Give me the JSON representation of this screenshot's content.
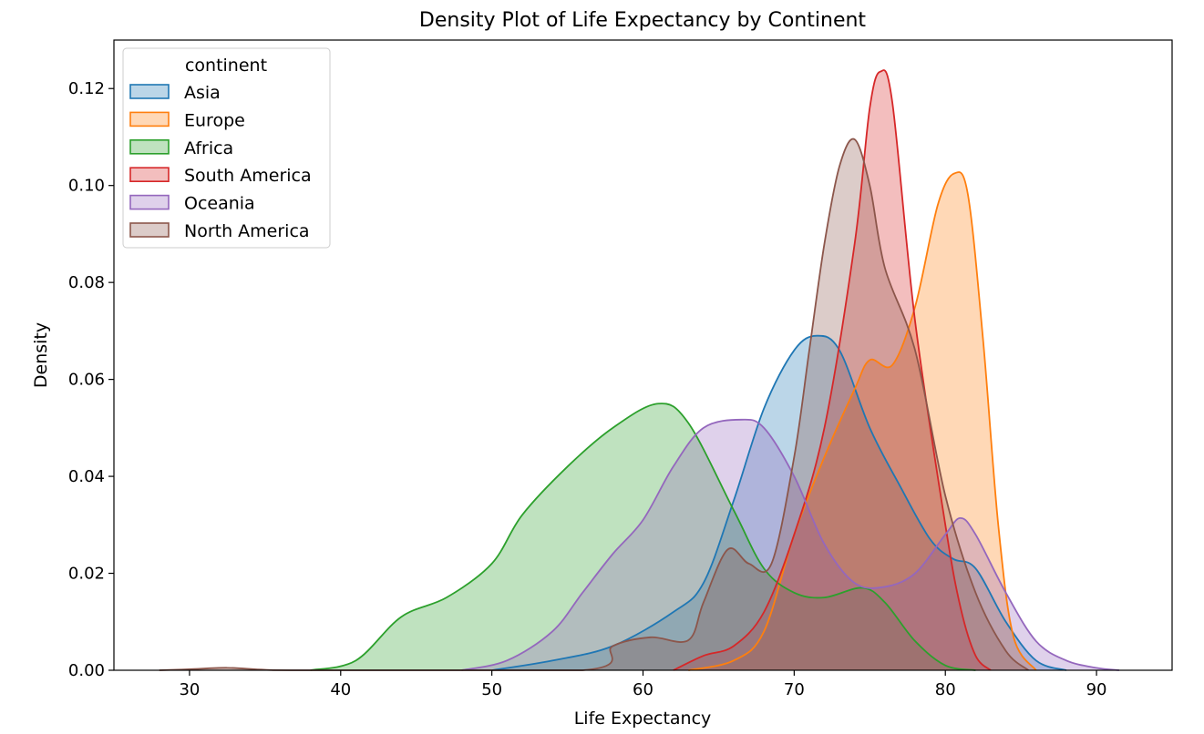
{
  "chart_data": {
    "type": "area",
    "subtype": "kde-density",
    "title": "Density Plot of Life Expectancy by Continent",
    "xlabel": "Life Expectancy",
    "ylabel": "Density",
    "xlim": [
      25,
      95
    ],
    "ylim": [
      0,
      0.13
    ],
    "xticks": [
      "30",
      "40",
      "50",
      "60",
      "70",
      "80",
      "90"
    ],
    "yticks": [
      "0.00",
      "0.02",
      "0.04",
      "0.06",
      "0.08",
      "0.10",
      "0.12"
    ],
    "grid": false,
    "legend": {
      "title": "continent",
      "placement": "top-left"
    },
    "series": [
      {
        "name": "Asia",
        "color": "#1f77b4",
        "points": [
          [
            50,
            0
          ],
          [
            54,
            0.002
          ],
          [
            58,
            0.005
          ],
          [
            62,
            0.012
          ],
          [
            64,
            0.018
          ],
          [
            66,
            0.035
          ],
          [
            68,
            0.054
          ],
          [
            70,
            0.066
          ],
          [
            71.5,
            0.069
          ],
          [
            73,
            0.066
          ],
          [
            75,
            0.05
          ],
          [
            77,
            0.038
          ],
          [
            79,
            0.027
          ],
          [
            80.5,
            0.023
          ],
          [
            82,
            0.021
          ],
          [
            84,
            0.01
          ],
          [
            86,
            0.002
          ],
          [
            88,
            0
          ]
        ]
      },
      {
        "name": "Europe",
        "color": "#ff7f0e",
        "points": [
          [
            63,
            0
          ],
          [
            66,
            0.002
          ],
          [
            68,
            0.008
          ],
          [
            70,
            0.028
          ],
          [
            72,
            0.044
          ],
          [
            74,
            0.058
          ],
          [
            75,
            0.064
          ],
          [
            76.5,
            0.063
          ],
          [
            78,
            0.075
          ],
          [
            79.5,
            0.096
          ],
          [
            80.6,
            0.1025
          ],
          [
            81.5,
            0.098
          ],
          [
            82.5,
            0.068
          ],
          [
            83.5,
            0.03
          ],
          [
            84.5,
            0.007
          ],
          [
            86,
            0
          ]
        ]
      },
      {
        "name": "Africa",
        "color": "#2ca02c",
        "points": [
          [
            38,
            0
          ],
          [
            41,
            0.002
          ],
          [
            44,
            0.011
          ],
          [
            47,
            0.015
          ],
          [
            50,
            0.022
          ],
          [
            52,
            0.032
          ],
          [
            55,
            0.042
          ],
          [
            58,
            0.05
          ],
          [
            61,
            0.055
          ],
          [
            63,
            0.051
          ],
          [
            66,
            0.033
          ],
          [
            68,
            0.021
          ],
          [
            70,
            0.016
          ],
          [
            72,
            0.015
          ],
          [
            74.5,
            0.017
          ],
          [
            76,
            0.014
          ],
          [
            78,
            0.006
          ],
          [
            80,
            0.001
          ],
          [
            82,
            0
          ]
        ]
      },
      {
        "name": "South America",
        "color": "#d62728",
        "points": [
          [
            62,
            0
          ],
          [
            64,
            0.003
          ],
          [
            66,
            0.005
          ],
          [
            68,
            0.012
          ],
          [
            70,
            0.028
          ],
          [
            72,
            0.05
          ],
          [
            74,
            0.088
          ],
          [
            75,
            0.116
          ],
          [
            75.7,
            0.1235
          ],
          [
            76.5,
            0.117
          ],
          [
            78,
            0.072
          ],
          [
            80,
            0.03
          ],
          [
            81,
            0.013
          ],
          [
            82,
            0.003
          ],
          [
            83,
            0
          ]
        ]
      },
      {
        "name": "Oceania",
        "color": "#9467bd",
        "points": [
          [
            48,
            0
          ],
          [
            51,
            0.002
          ],
          [
            54,
            0.008
          ],
          [
            56,
            0.016
          ],
          [
            58,
            0.024
          ],
          [
            60,
            0.031
          ],
          [
            62,
            0.042
          ],
          [
            64,
            0.05
          ],
          [
            66.5,
            0.0517
          ],
          [
            68,
            0.05
          ],
          [
            70,
            0.04
          ],
          [
            72,
            0.026
          ],
          [
            74,
            0.018
          ],
          [
            76,
            0.0172
          ],
          [
            78,
            0.02
          ],
          [
            80,
            0.028
          ],
          [
            81,
            0.0314
          ],
          [
            82,
            0.028
          ],
          [
            84,
            0.016
          ],
          [
            86,
            0.006
          ],
          [
            88,
            0.002
          ],
          [
            90,
            0.0005
          ],
          [
            91.5,
            0
          ]
        ]
      },
      {
        "name": "North America",
        "color": "#8c564b",
        "points": [
          [
            28,
            0
          ],
          [
            30,
            0.0002
          ],
          [
            32.5,
            0.0005
          ],
          [
            35,
            0.0001
          ],
          [
            38,
            0
          ],
          [
            56,
            0
          ],
          [
            58,
            0.005
          ],
          [
            60.5,
            0.0068
          ],
          [
            63,
            0.0062
          ],
          [
            64,
            0.014
          ],
          [
            65.6,
            0.0249
          ],
          [
            67,
            0.022
          ],
          [
            68.5,
            0.022
          ],
          [
            70,
            0.044
          ],
          [
            71,
            0.066
          ],
          [
            72,
            0.088
          ],
          [
            73,
            0.104
          ],
          [
            74,
            0.1095
          ],
          [
            75,
            0.1
          ],
          [
            76,
            0.083
          ],
          [
            78,
            0.066
          ],
          [
            80,
            0.036
          ],
          [
            82,
            0.016
          ],
          [
            84,
            0.004
          ],
          [
            85.5,
            0
          ]
        ]
      }
    ]
  }
}
